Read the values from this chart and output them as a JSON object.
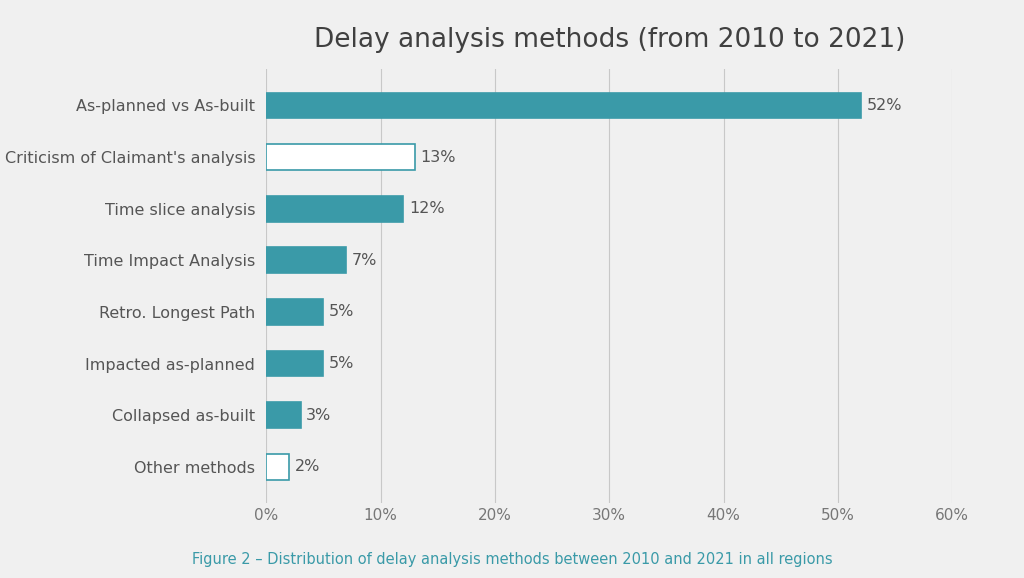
{
  "title": "Delay analysis methods (from 2010 to 2021)",
  "caption": "Figure 2 – Distribution of delay analysis methods between 2010 and 2021 in all regions",
  "categories": [
    "Other methods",
    "Collapsed as-built",
    "Impacted as-planned",
    "Retro. Longest Path",
    "Time Impact Analysis",
    "Time slice analysis",
    "Criticism of Claimant's analysis",
    "As-planned vs As-built"
  ],
  "values": [
    2,
    3,
    5,
    5,
    7,
    12,
    13,
    52
  ],
  "filled": [
    false,
    true,
    true,
    true,
    true,
    true,
    false,
    true
  ],
  "bar_color_filled": "#3a9aa8",
  "bar_color_empty": "#ffffff",
  "bar_edge_color": "#3a9aa8",
  "background_color": "#f0f0f0",
  "plot_bg_color": "#f0f0f0",
  "grid_color": "#c8c8c8",
  "title_color": "#404040",
  "caption_color": "#3a9aa8",
  "label_color": "#555555",
  "value_label_color": "#555555",
  "tick_label_color": "#777777",
  "xlim": [
    0,
    60
  ],
  "xticks": [
    0,
    10,
    20,
    30,
    40,
    50,
    60
  ],
  "xtick_labels": [
    "0%",
    "10%",
    "20%",
    "30%",
    "40%",
    "50%",
    "60%"
  ],
  "title_fontsize": 19,
  "caption_fontsize": 10.5,
  "label_fontsize": 11.5,
  "value_fontsize": 11.5,
  "tick_fontsize": 11,
  "bar_height": 0.5
}
